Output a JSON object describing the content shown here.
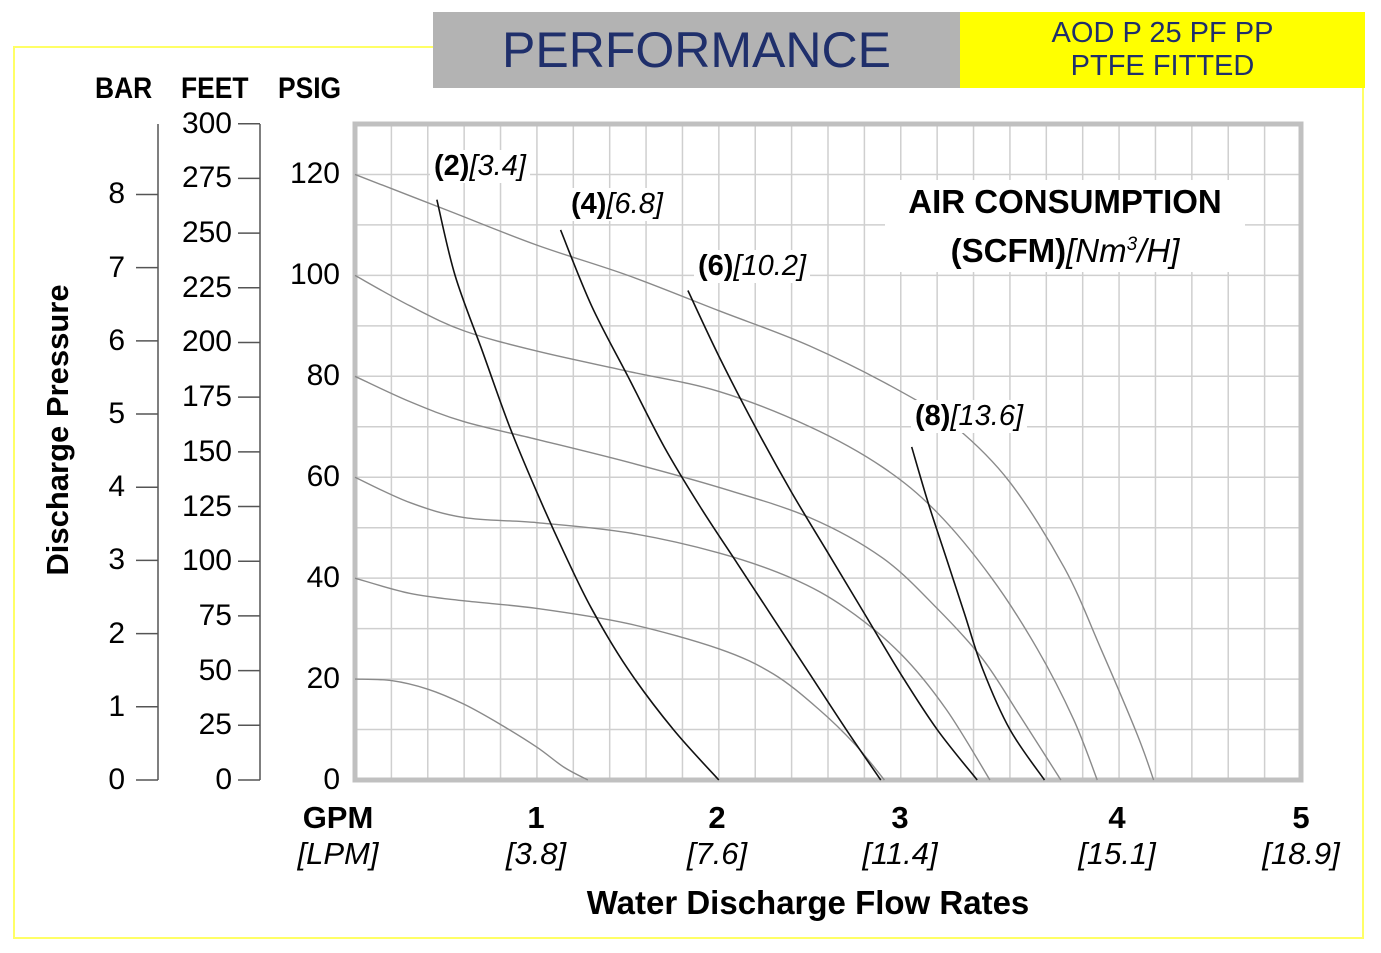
{
  "header": {
    "title": "PERFORMANCE",
    "model_line1": "AOD P 25 PF PP",
    "model_line2": "PTFE FITTED",
    "title_color": "#1f2f6b",
    "title_bg": "#b3b3b3",
    "model_bg": "#ffff00"
  },
  "chart_data": {
    "type": "line",
    "title": "PERFORMANCE",
    "xlabel": "Water Discharge Flow Rates",
    "ylabel": "Discharge Pressure",
    "x_unit_primary": "GPM",
    "x_unit_secondary": "[LPM]",
    "xlim": [
      0,
      5.2
    ],
    "ylim": [
      0,
      130
    ],
    "grid": true,
    "x_ticks": [
      {
        "gpm": "1",
        "lpm": "[3.8]"
      },
      {
        "gpm": "2",
        "lpm": "[7.6]"
      },
      {
        "gpm": "3",
        "lpm": "[11.4]"
      },
      {
        "gpm": "4",
        "lpm": "[15.1]"
      },
      {
        "gpm": "5",
        "lpm": "[18.9]"
      }
    ],
    "y_axes": {
      "header": {
        "bar": "BAR",
        "feet": "FEET",
        "psig": "PSIG"
      },
      "bar_ticks": [
        "0",
        "1",
        "2",
        "3",
        "4",
        "5",
        "6",
        "7",
        "8"
      ],
      "feet_ticks": [
        "0",
        "25",
        "50",
        "75",
        "100",
        "125",
        "150",
        "175",
        "200",
        "225",
        "250",
        "275",
        "300"
      ],
      "psig_ticks": [
        "0",
        "20",
        "40",
        "60",
        "80",
        "100",
        "120"
      ]
    },
    "air_consumption_title": "AIR CONSUMPTION",
    "air_consumption_unit_bold": "(SCFM)",
    "air_consumption_unit_italic": "[Nm",
    "air_consumption_unit_sup": "3",
    "air_consumption_unit_tail": "/H]",
    "pressure_series": [
      {
        "name": "120 psig",
        "points": [
          [
            0,
            120
          ],
          [
            0.5,
            113
          ],
          [
            1.0,
            106
          ],
          [
            1.5,
            100
          ],
          [
            2.0,
            93
          ],
          [
            2.5,
            86
          ],
          [
            3.0,
            77
          ],
          [
            3.3,
            70
          ],
          [
            3.6,
            59
          ],
          [
            3.9,
            42
          ],
          [
            4.1,
            26
          ],
          [
            4.3,
            9
          ],
          [
            4.39,
            0
          ]
        ]
      },
      {
        "name": "100 psig",
        "points": [
          [
            0,
            100
          ],
          [
            0.3,
            94
          ],
          [
            0.6,
            89
          ],
          [
            1.0,
            85
          ],
          [
            1.5,
            81
          ],
          [
            2.0,
            77
          ],
          [
            2.5,
            70
          ],
          [
            2.9,
            62
          ],
          [
            3.2,
            53
          ],
          [
            3.5,
            40
          ],
          [
            3.75,
            26
          ],
          [
            3.95,
            12
          ],
          [
            4.08,
            0
          ]
        ]
      },
      {
        "name": "80 psig",
        "points": [
          [
            0,
            80
          ],
          [
            0.3,
            75
          ],
          [
            0.6,
            71
          ],
          [
            1.0,
            67.5
          ],
          [
            1.5,
            63
          ],
          [
            2.0,
            58
          ],
          [
            2.5,
            52
          ],
          [
            2.9,
            44
          ],
          [
            3.2,
            34
          ],
          [
            3.45,
            24
          ],
          [
            3.65,
            13
          ],
          [
            3.88,
            0
          ]
        ]
      },
      {
        "name": "60 psig",
        "points": [
          [
            0,
            60
          ],
          [
            0.3,
            55
          ],
          [
            0.6,
            52
          ],
          [
            1.0,
            51
          ],
          [
            1.5,
            49
          ],
          [
            2.0,
            45
          ],
          [
            2.4,
            40
          ],
          [
            2.7,
            34
          ],
          [
            3.0,
            25
          ],
          [
            3.25,
            14
          ],
          [
            3.49,
            0
          ]
        ]
      },
      {
        "name": "40 psig",
        "points": [
          [
            0,
            40
          ],
          [
            0.3,
            37
          ],
          [
            0.6,
            35.5
          ],
          [
            1.0,
            34
          ],
          [
            1.5,
            31
          ],
          [
            2.0,
            26
          ],
          [
            2.3,
            21
          ],
          [
            2.55,
            14
          ],
          [
            2.75,
            7
          ],
          [
            2.91,
            0
          ]
        ]
      },
      {
        "name": "20 psig",
        "points": [
          [
            0,
            20
          ],
          [
            0.2,
            19.7
          ],
          [
            0.4,
            18
          ],
          [
            0.6,
            15
          ],
          [
            0.8,
            11
          ],
          [
            1.0,
            6.5
          ],
          [
            1.15,
            2.5
          ],
          [
            1.28,
            0
          ]
        ]
      }
    ],
    "air_series": [
      {
        "scfm": "(2)",
        "nm3h": "[3.4]",
        "points": [
          [
            0.45,
            115
          ],
          [
            0.55,
            100
          ],
          [
            0.7,
            85
          ],
          [
            0.85,
            70
          ],
          [
            1.0,
            57
          ],
          [
            1.15,
            45
          ],
          [
            1.3,
            34
          ],
          [
            1.5,
            22
          ],
          [
            1.75,
            10
          ],
          [
            2.0,
            0
          ]
        ]
      },
      {
        "scfm": "(4)",
        "nm3h": "[6.8]",
        "points": [
          [
            1.13,
            109
          ],
          [
            1.3,
            94
          ],
          [
            1.5,
            80
          ],
          [
            1.7,
            66
          ],
          [
            1.9,
            54
          ],
          [
            2.1,
            43
          ],
          [
            2.3,
            32
          ],
          [
            2.5,
            21
          ],
          [
            2.7,
            10
          ],
          [
            2.89,
            0
          ]
        ]
      },
      {
        "scfm": "(6)",
        "nm3h": "[10.2]",
        "points": [
          [
            1.83,
            97
          ],
          [
            2.0,
            84
          ],
          [
            2.2,
            70
          ],
          [
            2.4,
            57
          ],
          [
            2.6,
            45
          ],
          [
            2.8,
            33
          ],
          [
            3.0,
            21
          ],
          [
            3.2,
            10
          ],
          [
            3.42,
            0
          ]
        ]
      },
      {
        "scfm": "(8)",
        "nm3h": "[13.6]",
        "points": [
          [
            3.06,
            66
          ],
          [
            3.15,
            55
          ],
          [
            3.25,
            44
          ],
          [
            3.35,
            33
          ],
          [
            3.45,
            22
          ],
          [
            3.6,
            10
          ],
          [
            3.79,
            0
          ]
        ]
      }
    ]
  }
}
